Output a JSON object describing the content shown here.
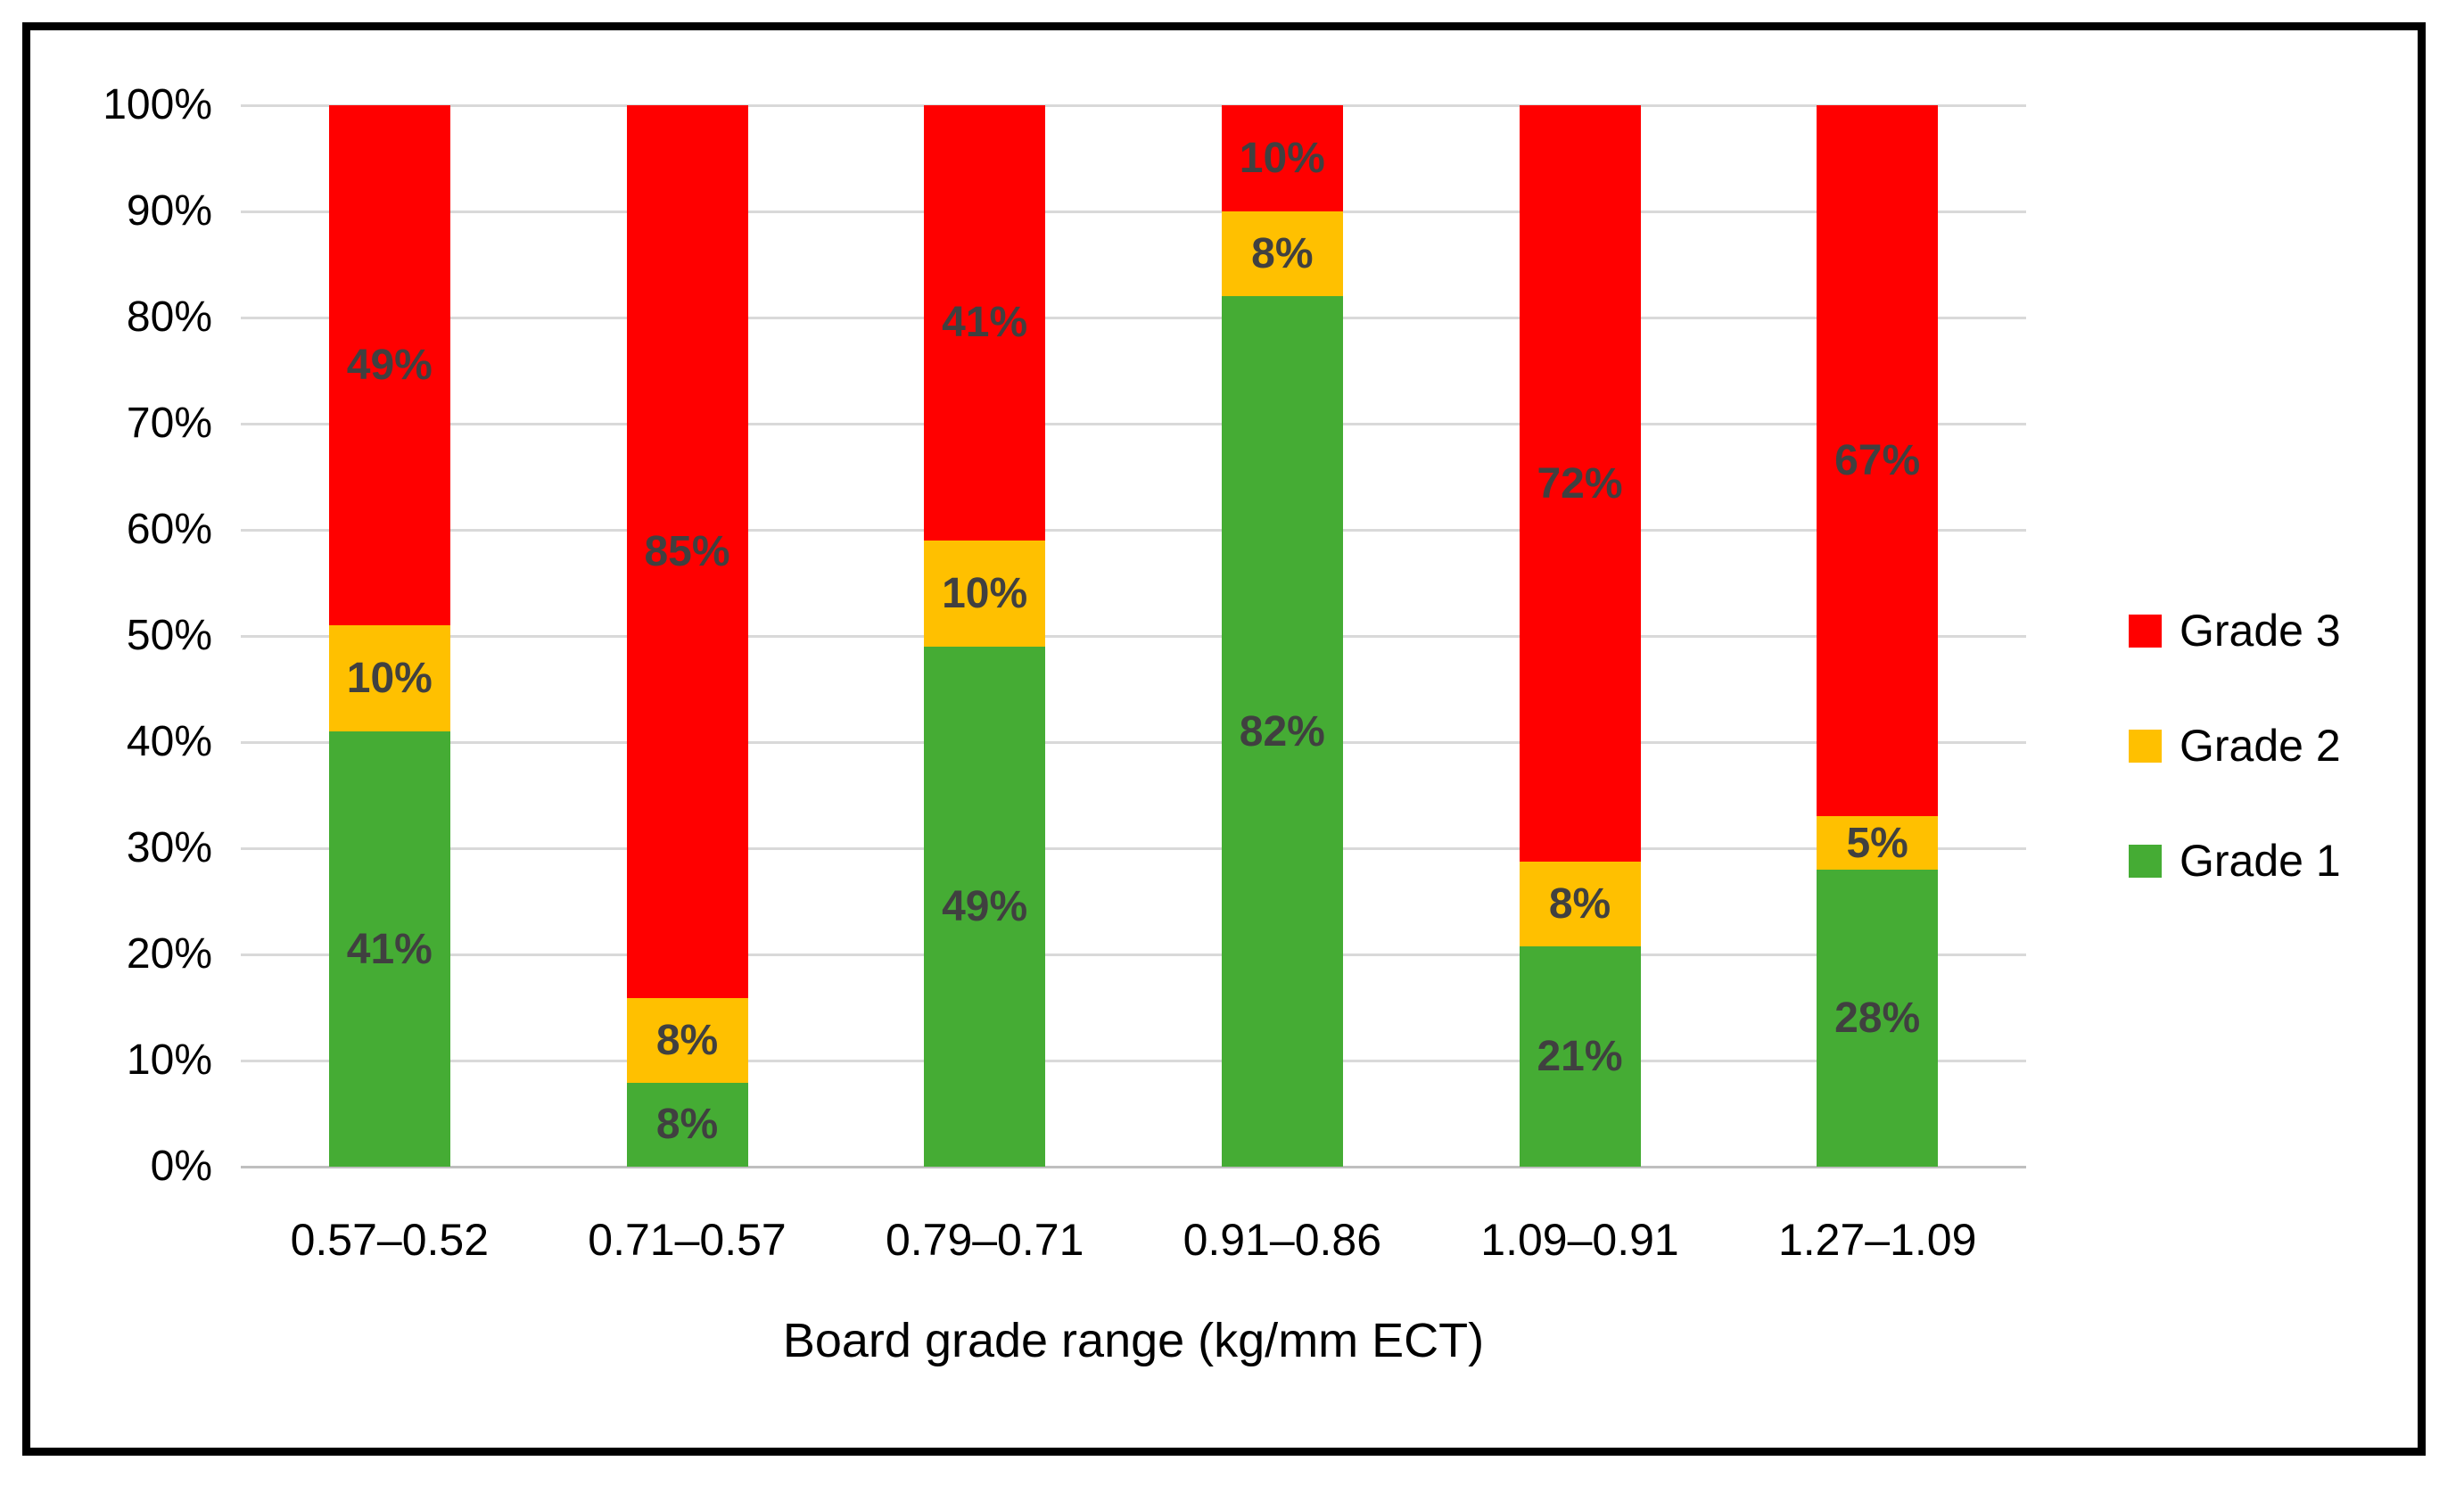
{
  "figure": {
    "background": "#FFFFFF",
    "frame_border_color": "#000000"
  },
  "chart_data": {
    "type": "bar",
    "variant": "stacked-100-percent-column",
    "title": "",
    "xlabel": "Board grade range (kg/mm ECT)",
    "ylabel": "",
    "categories": [
      "0.57–0.52",
      "0.71–0.57",
      "0.79–0.71",
      "0.91–0.86",
      "1.09–0.91",
      "1.27–1.09"
    ],
    "series": [
      {
        "name": "Grade 1",
        "color": "#45AC34",
        "values": [
          41,
          8,
          49,
          82,
          21,
          28
        ]
      },
      {
        "name": "Grade 2",
        "color": "#FFC000",
        "values": [
          10,
          8,
          10,
          8,
          8,
          5
        ]
      },
      {
        "name": "Grade 3",
        "color": "#FF0000",
        "values": [
          49,
          85,
          41,
          10,
          72,
          67
        ]
      }
    ],
    "data_labels": [
      "41%",
      "8%",
      "49%",
      "82%",
      "21%",
      "28%",
      "10%",
      "8%",
      "10%",
      "8%",
      "8%",
      "5%",
      "49%",
      "85%",
      "41%",
      "10%",
      "72%",
      "67%"
    ],
    "data_label_suffix": "%",
    "y_ticks": [
      "0%",
      "10%",
      "20%",
      "30%",
      "40%",
      "50%",
      "60%",
      "70%",
      "80%",
      "90%",
      "100%"
    ],
    "ylim": [
      0,
      100
    ],
    "grid": true,
    "legend_position": "right",
    "legend_order": [
      "Grade 3",
      "Grade 2",
      "Grade 1"
    ]
  },
  "colors": {
    "gridline": "#D9D9D9",
    "axis_line": "#BFBFBF",
    "data_label_text": "#404040",
    "tick_text": "#000000"
  }
}
